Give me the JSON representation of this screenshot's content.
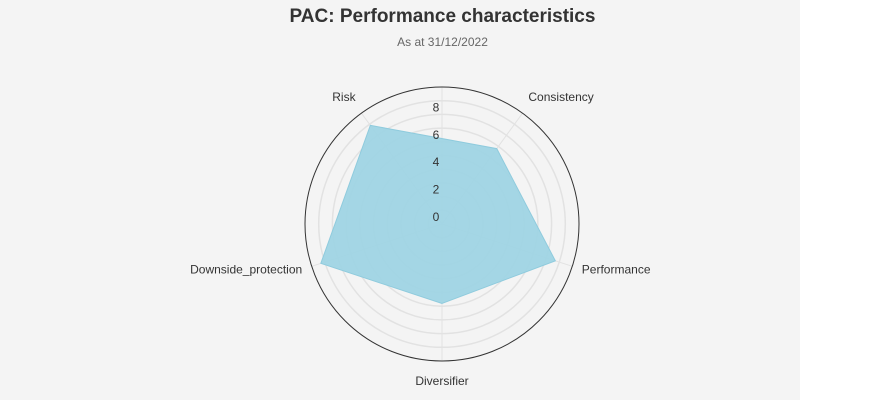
{
  "header": {
    "title": "PAC: Performance characteristics",
    "subtitle": "As at 31/12/2022"
  },
  "colors": {
    "background": "#f4f4f4",
    "fill": "#9fd4e4",
    "outline": "#333333",
    "grid": "#e2e2e2"
  },
  "chart_data": {
    "type": "radar",
    "title": "PAC: Performance characteristics",
    "subtitle": "As at 31/12/2022",
    "categories": [
      "Diversifier",
      "Performance",
      "Consistency",
      "Risk",
      "Downside_protection"
    ],
    "series": [
      {
        "name": "PAC",
        "values": [
          5.8,
          8.7,
          6.8,
          8.9,
          9.3
        ]
      }
    ],
    "radial_range": [
      0,
      10
    ],
    "radial_ticks": [
      0,
      2,
      4,
      6,
      8
    ],
    "grid_step": 1,
    "legend": "none"
  }
}
